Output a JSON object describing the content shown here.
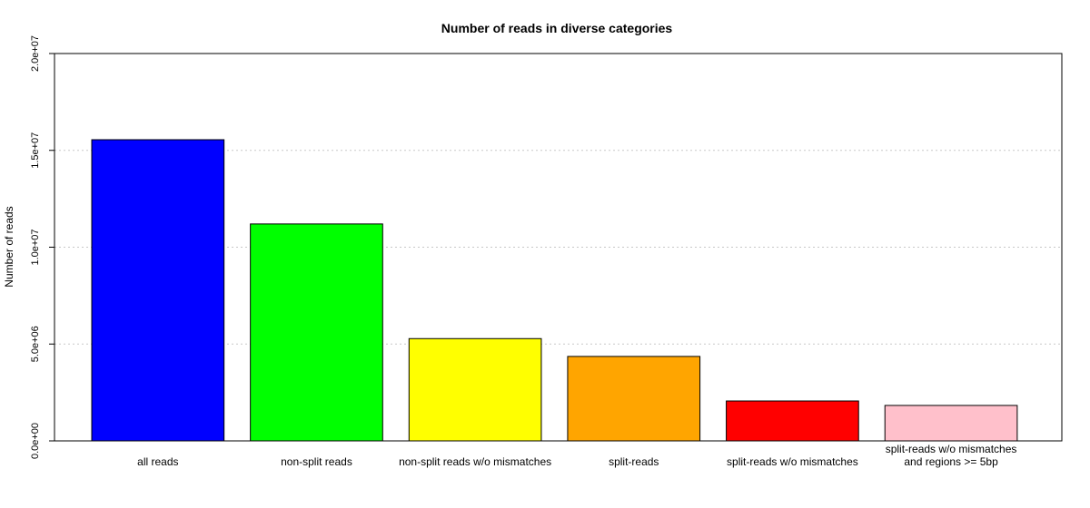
{
  "chart_data": {
    "type": "bar",
    "title": "Number of reads in diverse categories",
    "xlabel": "",
    "ylabel": "Number of reads",
    "ylim": [
      0,
      20000000
    ],
    "yticks": [
      0,
      5000000,
      10000000,
      15000000,
      20000000
    ],
    "ytick_labels": [
      "0.0e+00",
      "5.0e+06",
      "1.0e+07",
      "1.5e+07",
      "2.0e+07"
    ],
    "grid": true,
    "categories": [
      [
        "all reads"
      ],
      [
        "non-split reads"
      ],
      [
        "non-split reads w/o mismatches"
      ],
      [
        "split-reads"
      ],
      [
        "split-reads w/o mismatches"
      ],
      [
        "split-reads w/o mismatches",
        "and regions >= 5bp"
      ]
    ],
    "values": [
      15550000,
      11200000,
      5280000,
      4360000,
      2060000,
      1830000
    ],
    "colors": [
      "#0000ff",
      "#00ff00",
      "#ffff00",
      "#ffa500",
      "#ff0000",
      "#ffc0cb"
    ]
  }
}
